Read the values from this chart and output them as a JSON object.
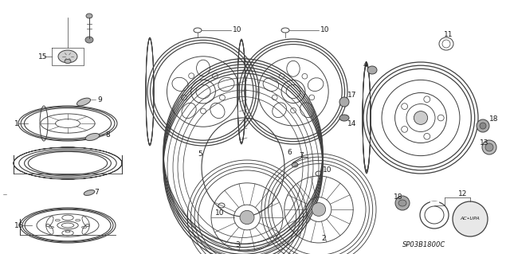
{
  "bg_color": "#ffffff",
  "line_color": "#404040",
  "text_color": "#1a1a1a",
  "diagram_code": "SP03B1800C",
  "figsize": [
    6.4,
    3.19
  ],
  "dpi": 100
}
